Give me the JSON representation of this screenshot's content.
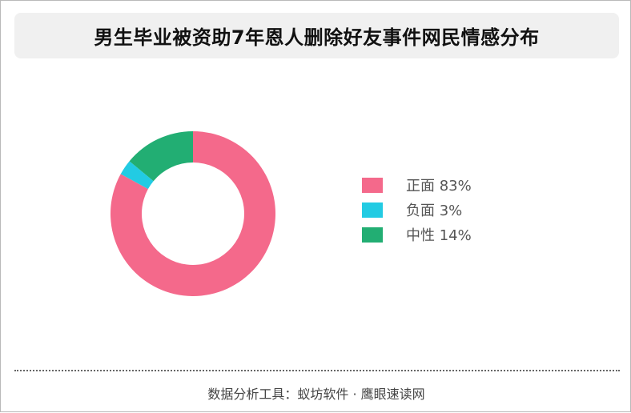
{
  "footer": "数据分析工具：蚁坊软件 · 鹰眼速读网",
  "chart_data": {
    "type": "pie",
    "title": "男生毕业被资助7年恩人删除好友事件网民情感分布",
    "donut": true,
    "legend_position": "right",
    "categories": [
      "正面",
      "负面",
      "中性"
    ],
    "values": [
      83,
      3,
      14
    ],
    "value_labels": [
      "83%",
      "3%",
      "14%"
    ],
    "colors": [
      "#f4698b",
      "#22cbe3",
      "#22ae73"
    ]
  }
}
